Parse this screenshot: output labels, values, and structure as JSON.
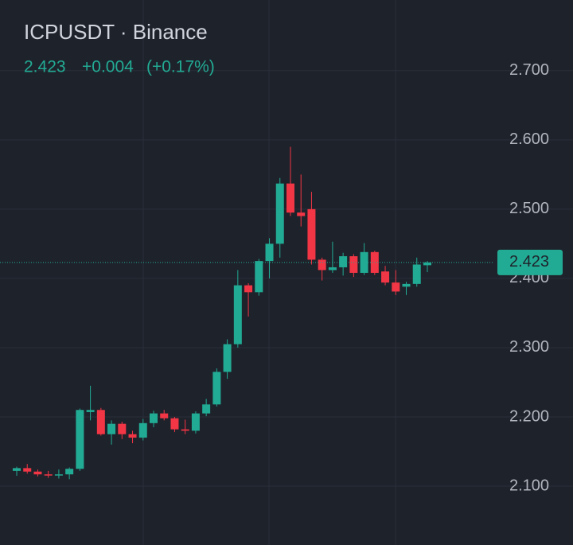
{
  "chart_data": {
    "type": "candlestick",
    "title": "ICPUSDT · Binance",
    "price": 2.423,
    "change": "+0.004",
    "change_pct": "(+0.17%)",
    "up_color": "#22ab94",
    "down_color": "#f23645",
    "grid": true,
    "ylim": [
      2.015,
      2.802
    ],
    "yticks": [
      {
        "value": 2.7,
        "label": "2.700"
      },
      {
        "value": 2.6,
        "label": "2.600"
      },
      {
        "value": 2.5,
        "label": "2.500"
      },
      {
        "value": 2.4,
        "label": "2.400"
      },
      {
        "value": 2.3,
        "label": "2.300"
      },
      {
        "value": 2.2,
        "label": "2.200"
      },
      {
        "value": 2.1,
        "label": "2.100"
      }
    ],
    "open": [
      2.122,
      2.126,
      2.121,
      2.117,
      2.116,
      2.117,
      2.125,
      2.207,
      2.21,
      2.175,
      2.19,
      2.175,
      2.17,
      2.191,
      2.205,
      2.198,
      2.182,
      2.18,
      2.205,
      2.218,
      2.265,
      2.305,
      2.39,
      2.38,
      2.425,
      2.45,
      2.537,
      2.495,
      2.5,
      2.427,
      2.412,
      2.416,
      2.432,
      2.408,
      2.438,
      2.41,
      2.394,
      2.388,
      2.392,
      2.419
    ],
    "high": [
      2.128,
      2.132,
      2.124,
      2.122,
      2.124,
      2.127,
      2.212,
      2.245,
      2.213,
      2.195,
      2.193,
      2.18,
      2.197,
      2.209,
      2.21,
      2.2,
      2.196,
      2.208,
      2.226,
      2.27,
      2.312,
      2.412,
      2.393,
      2.428,
      2.458,
      2.545,
      2.59,
      2.55,
      2.525,
      2.43,
      2.453,
      2.437,
      2.435,
      2.451,
      2.44,
      2.418,
      2.412,
      2.395,
      2.43,
      2.425
    ],
    "low": [
      2.115,
      2.118,
      2.114,
      2.112,
      2.111,
      2.11,
      2.122,
      2.195,
      2.173,
      2.16,
      2.168,
      2.162,
      2.166,
      2.185,
      2.195,
      2.178,
      2.175,
      2.176,
      2.201,
      2.215,
      2.255,
      2.3,
      2.345,
      2.375,
      2.4,
      2.43,
      2.49,
      2.475,
      2.42,
      2.397,
      2.408,
      2.404,
      2.402,
      2.405,
      2.405,
      2.39,
      2.376,
      2.376,
      2.388,
      2.409
    ],
    "close": [
      2.126,
      2.121,
      2.117,
      2.116,
      2.117,
      2.125,
      2.21,
      2.21,
      2.175,
      2.19,
      2.175,
      2.17,
      2.191,
      2.205,
      2.198,
      2.182,
      2.18,
      2.205,
      2.218,
      2.265,
      2.305,
      2.39,
      2.38,
      2.425,
      2.45,
      2.537,
      2.495,
      2.49,
      2.427,
      2.412,
      2.416,
      2.432,
      2.408,
      2.438,
      2.408,
      2.394,
      2.381,
      2.392,
      2.42,
      2.423
    ]
  }
}
